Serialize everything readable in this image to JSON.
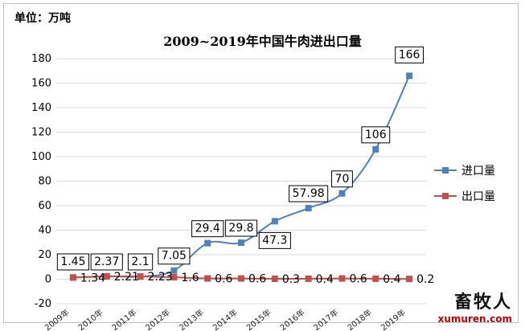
{
  "unit_label": "单位：万吨",
  "watermark": {
    "name": "畜牧人",
    "url": "xumuren.com"
  },
  "colors": {
    "import": "#4f81bd",
    "export": "#c0504d",
    "grid": "#d9d9d9"
  },
  "chart_data": {
    "type": "line",
    "title": "2009~2019年中国牛肉进出口量",
    "xlabel": "",
    "ylabel": "",
    "categories": [
      "2009年",
      "2010年",
      "2011年",
      "2012年",
      "2013年",
      "2014年",
      "2015年",
      "2016年",
      "2017年",
      "2018年",
      "2019年"
    ],
    "ylim": [
      -20,
      180
    ],
    "yticks": [
      -20,
      0,
      20,
      40,
      60,
      80,
      100,
      120,
      140,
      160,
      180
    ],
    "grid": true,
    "legend_position": "right",
    "series": [
      {
        "name": "进口量",
        "values": [
          1.45,
          2.37,
          2.1,
          7.05,
          29.4,
          29.8,
          47.3,
          57.98,
          70,
          106,
          166
        ],
        "labels": [
          "1.45",
          "2.37",
          "2.1",
          "7.05",
          "29.4",
          "29.8",
          "47.3",
          "57.98",
          "70",
          "106",
          "166"
        ]
      },
      {
        "name": "出口量",
        "values": [
          1.34,
          2.21,
          2.23,
          1.6,
          0.6,
          0.6,
          0.3,
          0.4,
          0.6,
          0.4,
          0.2
        ],
        "labels": [
          "1.34",
          "2.21",
          "2.23",
          "1.6",
          "0.6",
          "0.6",
          "0.3",
          "0.4",
          "0.6",
          "0.4",
          "0.2"
        ]
      }
    ]
  }
}
